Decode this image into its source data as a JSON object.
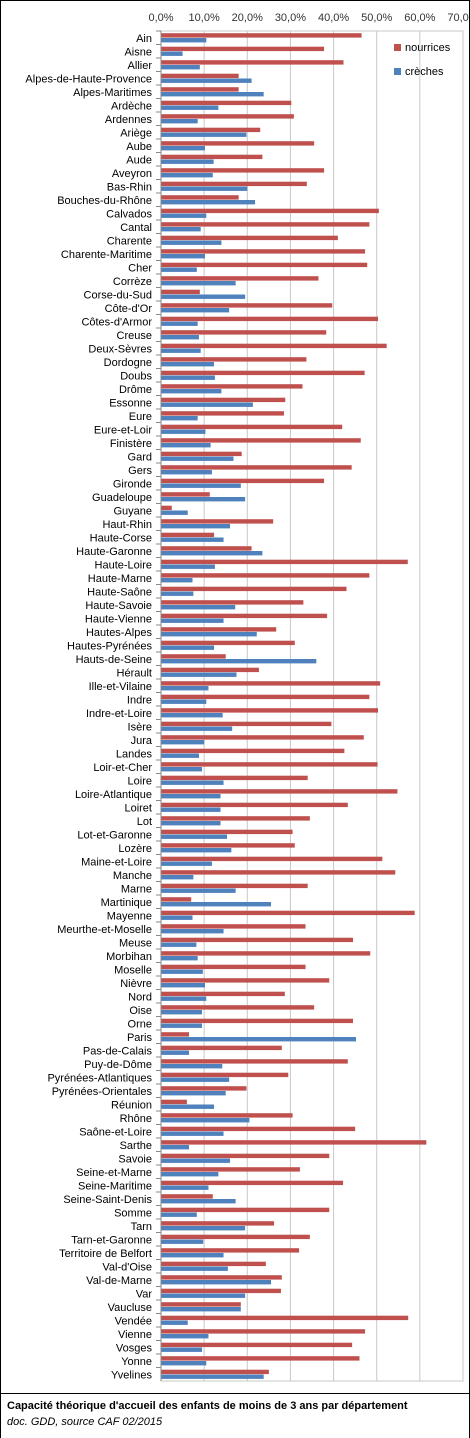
{
  "chart_data": {
    "type": "bar",
    "orientation": "horizontal",
    "xlim": [
      0,
      70
    ],
    "x_ticks": [
      "0,0%",
      "10,0%",
      "20,0%",
      "30,0%",
      "40,0%",
      "50,0%",
      "60,0%",
      "70,0%"
    ],
    "x_tick_values": [
      0,
      10,
      20,
      30,
      40,
      50,
      60,
      70
    ],
    "grid": "vertical",
    "legend_position": "top-right",
    "colors": {
      "nourrices": "#C0504D",
      "creches": "#4F81BD"
    },
    "categories": [
      "Ain",
      "Aisne",
      "Allier",
      "Alpes-de-Haute-Provence",
      "Alpes-Maritimes",
      "Ardèche",
      "Ardennes",
      "Ariège",
      "Aube",
      "Aude",
      "Aveyron",
      "Bas-Rhin",
      "Bouches-du-Rhône",
      "Calvados",
      "Cantal",
      "Charente",
      "Charente-Maritime",
      "Cher",
      "Corrèze",
      "Corse-du-Sud",
      "Côte-d'Or",
      "Côtes-d'Armor",
      "Creuse",
      "Deux-Sèvres",
      "Dordogne",
      "Doubs",
      "Drôme",
      "Essonne",
      "Eure",
      "Eure-et-Loir",
      "Finistère",
      "Gard",
      "Gers",
      "Gironde",
      "Guadeloupe",
      "Guyane",
      "Haut-Rhin",
      "Haute-Corse",
      "Haute-Garonne",
      "Haute-Loire",
      "Haute-Marne",
      "Haute-Saône",
      "Haute-Savoie",
      "Haute-Vienne",
      "Hautes-Alpes",
      "Hautes-Pyrénées",
      "Hauts-de-Seine",
      "Hérault",
      "Ille-et-Vilaine",
      "Indre",
      "Indre-et-Loire",
      "Isère",
      "Jura",
      "Landes",
      "Loir-et-Cher",
      "Loire",
      "Loire-Atlantique",
      "Loiret",
      "Lot",
      "Lot-et-Garonne",
      "Lozère",
      "Maine-et-Loire",
      "Manche",
      "Marne",
      "Martinique",
      "Mayenne",
      "Meurthe-et-Moselle",
      "Meuse",
      "Morbihan",
      "Moselle",
      "Nièvre",
      "Nord",
      "Oise",
      "Orne",
      "Paris",
      "Pas-de-Calais",
      "Puy-de-Dôme",
      "Pyrénées-Atlantiques",
      "Pyrénées-Orientales",
      "Réunion",
      "Rhône",
      "Saône-et-Loire",
      "Sarthe",
      "Savoie",
      "Seine-et-Marne",
      "Seine-Maritime",
      "Seine-Saint-Denis",
      "Somme",
      "Tarn",
      "Tarn-et-Garonne",
      "Territoire de Belfort",
      "Val-d'Oise",
      "Val-de-Marne",
      "Var",
      "Vaucluse",
      "Vendée",
      "Vienne",
      "Vosges",
      "Yonne",
      "Yvelines"
    ],
    "series": [
      {
        "name": "nourrices",
        "values": [
          46.5,
          37.8,
          42.3,
          18.0,
          18.0,
          30.2,
          30.8,
          23.0,
          35.5,
          23.5,
          37.8,
          33.8,
          18.0,
          50.5,
          48.3,
          41.0,
          47.3,
          47.8,
          36.5,
          9.0,
          39.7,
          50.3,
          38.3,
          52.3,
          33.7,
          47.2,
          32.8,
          28.8,
          28.5,
          42.0,
          46.3,
          18.7,
          44.2,
          37.8,
          11.3,
          2.5,
          26.0,
          12.3,
          21.0,
          57.2,
          48.3,
          43.0,
          33.0,
          38.5,
          26.7,
          31.0,
          15.0,
          22.7,
          50.8,
          48.3,
          50.3,
          39.5,
          47.0,
          42.5,
          50.2,
          34.0,
          54.8,
          43.3,
          34.5,
          30.5,
          31.0,
          51.3,
          54.3,
          34.0,
          7.0,
          58.8,
          33.5,
          44.5,
          48.5,
          33.5,
          39.0,
          28.7,
          35.5,
          44.5,
          6.5,
          28.0,
          43.3,
          29.5,
          19.8,
          6.0,
          30.5,
          45.0,
          61.5,
          39.0,
          32.2,
          42.2,
          12.0,
          39.0,
          26.2,
          34.5,
          32.0,
          24.3,
          28.0,
          27.8,
          18.5,
          57.3,
          47.3,
          44.3,
          46.0,
          25.0
        ]
      },
      {
        "name": "crèches",
        "values": [
          10.5,
          5.0,
          9.0,
          21.0,
          23.8,
          13.3,
          8.5,
          19.8,
          10.2,
          12.2,
          12.0,
          20.0,
          21.8,
          10.5,
          9.2,
          14.0,
          10.2,
          8.3,
          17.3,
          19.5,
          15.8,
          8.5,
          8.8,
          9.2,
          12.3,
          12.5,
          14.0,
          21.3,
          8.5,
          10.3,
          11.5,
          16.8,
          11.8,
          18.5,
          19.5,
          6.2,
          16.0,
          14.5,
          23.5,
          12.5,
          7.3,
          7.5,
          17.2,
          14.5,
          22.2,
          12.3,
          36.0,
          17.5,
          11.0,
          10.5,
          14.3,
          16.5,
          10.0,
          8.8,
          9.5,
          14.5,
          13.8,
          13.8,
          13.8,
          15.3,
          16.3,
          11.8,
          7.5,
          17.3,
          25.5,
          7.3,
          14.5,
          8.2,
          8.5,
          9.7,
          10.2,
          10.5,
          9.5,
          9.5,
          45.2,
          6.5,
          14.2,
          15.8,
          15.0,
          12.3,
          20.5,
          14.5,
          6.5,
          16.0,
          13.3,
          11.0,
          17.3,
          8.3,
          19.5,
          9.8,
          14.5,
          15.5,
          25.5,
          19.5,
          18.5,
          6.2,
          11.0,
          9.5,
          10.5,
          23.8
        ]
      }
    ]
  },
  "caption": {
    "title": "Capacité théorique d'accueil des enfants de moins de 3 ans par département",
    "source": "doc. GDD, source CAF 02/2015"
  }
}
